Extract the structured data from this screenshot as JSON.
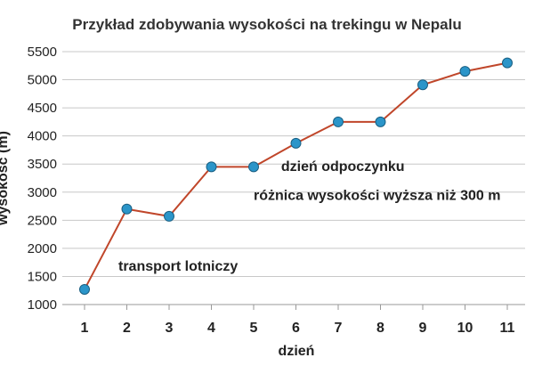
{
  "chart_data": {
    "type": "line",
    "title": "Przykład zdobywania wysokości na trekingu w Nepalu",
    "xlabel": "dzień",
    "ylabel": "wysokość (m)",
    "x": [
      1,
      2,
      3,
      4,
      5,
      6,
      7,
      8,
      9,
      10,
      11
    ],
    "categories": [
      "1",
      "2",
      "3",
      "4",
      "5",
      "6",
      "7",
      "8",
      "9",
      "10",
      "11"
    ],
    "yticks": [
      "1000",
      "1500",
      "2000",
      "2500",
      "3000",
      "3500",
      "4000",
      "4500",
      "5000",
      "5500"
    ],
    "ylim": [
      1000,
      5500
    ],
    "grid": true,
    "series": [
      {
        "values": [
          1270,
          2700,
          2570,
          3450,
          3450,
          3870,
          4250,
          4250,
          4910,
          5150,
          5300
        ]
      }
    ],
    "annotations": [
      {
        "text": "transport lotniczy",
        "x": 1.8,
        "y": 1600
      },
      {
        "text": "dzień odpoczynku",
        "x": 5.65,
        "y": 3380
      },
      {
        "text": "różnica wysokości wyższa niż 300 m",
        "x": 5.0,
        "y": 2860
      }
    ],
    "colors": {
      "line": "#c0462a",
      "marker": "#2b95c9",
      "marker_stroke": "#1a5f82",
      "grid": "#c8c8c8"
    }
  }
}
